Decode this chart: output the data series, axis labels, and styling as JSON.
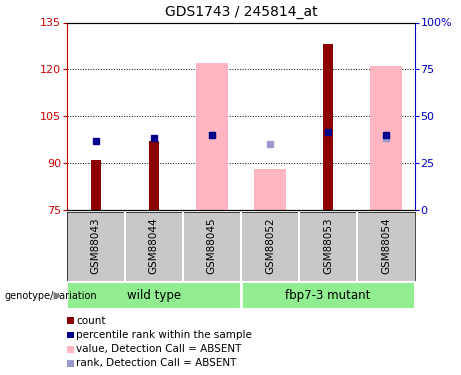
{
  "title": "GDS1743 / 245814_at",
  "samples": [
    "GSM88043",
    "GSM88044",
    "GSM88045",
    "GSM88052",
    "GSM88053",
    "GSM88054"
  ],
  "ylim_left": [
    75,
    135
  ],
  "ylim_right": [
    0,
    100
  ],
  "yticks_left": [
    75,
    90,
    105,
    120,
    135
  ],
  "yticks_right": [
    0,
    25,
    50,
    75,
    100
  ],
  "ytick_labels_right": [
    "0",
    "25",
    "50",
    "75",
    "100%"
  ],
  "bar_bottom": 75,
  "red_bars": [
    91,
    97,
    null,
    null,
    128,
    null
  ],
  "pink_bars": [
    null,
    null,
    122,
    88,
    null,
    121
  ],
  "blue_squares": [
    97,
    98,
    99,
    null,
    100,
    99
  ],
  "lightblue_squares": [
    null,
    null,
    99,
    96,
    null,
    98
  ],
  "grid_lines": [
    90,
    105,
    120
  ],
  "colors": {
    "red_bar": "#8B0000",
    "pink_bar": "#FFB6C1",
    "blue_sq": "#00008B",
    "lightblue_sq": "#9999CC",
    "axis_left": "#CC0000",
    "axis_right": "#0000CC",
    "group_green": "#90EE90",
    "sample_bg": "#C8C8C8",
    "white": "#FFFFFF"
  },
  "group_wt_label": "wild type",
  "group_mut_label": "fbp7-3 mutant",
  "genotype_label": "genotype/variation",
  "legend_items": [
    {
      "color": "#8B0000",
      "label": "count"
    },
    {
      "color": "#00008B",
      "label": "percentile rank within the sample"
    },
    {
      "color": "#FFB6C1",
      "label": "value, Detection Call = ABSENT"
    },
    {
      "color": "#9999CC",
      "label": "rank, Detection Call = ABSENT"
    }
  ]
}
